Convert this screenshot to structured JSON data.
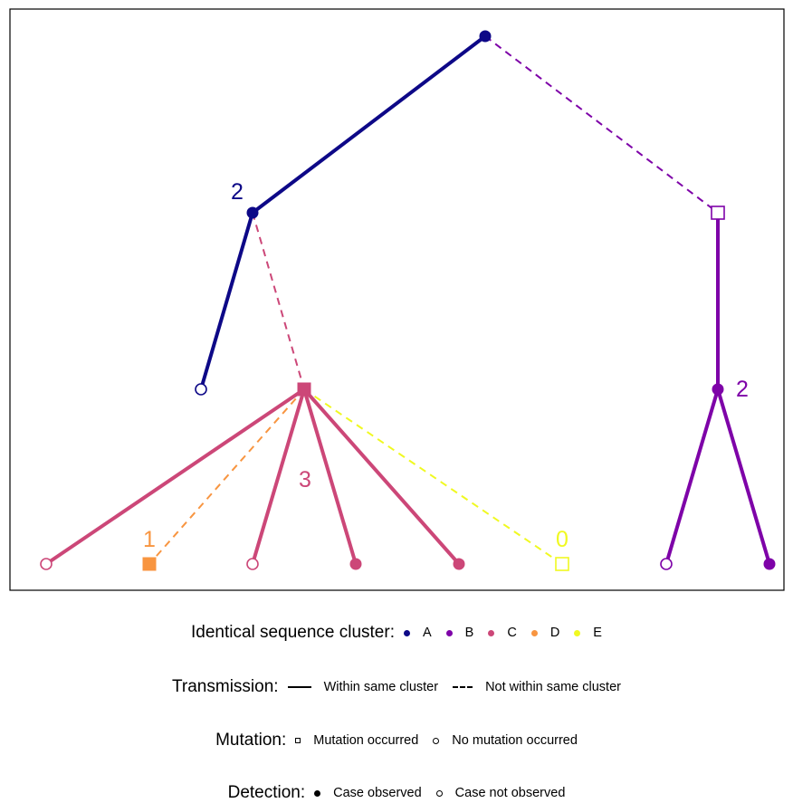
{
  "colors": {
    "A": "#0d0887",
    "B": "#7e03a8",
    "C": "#cc4778",
    "D": "#f89540",
    "E": "#f0f921"
  },
  "tree": {
    "nodes": [
      {
        "id": "root",
        "cluster": "A",
        "shape": "circle",
        "observed": true,
        "label": ""
      },
      {
        "id": "n2",
        "cluster": "A",
        "shape": "circle",
        "observed": true,
        "label": "2"
      },
      {
        "id": "nB",
        "cluster": "B",
        "shape": "square",
        "observed": false,
        "label": ""
      },
      {
        "id": "n4",
        "cluster": "A",
        "shape": "circle",
        "observed": false,
        "label": ""
      },
      {
        "id": "nC",
        "cluster": "C",
        "shape": "square",
        "observed": true,
        "label": "3"
      },
      {
        "id": "n6",
        "cluster": "B",
        "shape": "circle",
        "observed": true,
        "label": "2"
      },
      {
        "id": "c1",
        "cluster": "C",
        "shape": "circle",
        "observed": false,
        "label": ""
      },
      {
        "id": "c2",
        "cluster": "D",
        "shape": "square",
        "observed": true,
        "label": "1"
      },
      {
        "id": "c3",
        "cluster": "C",
        "shape": "circle",
        "observed": false,
        "label": ""
      },
      {
        "id": "c4",
        "cluster": "C",
        "shape": "circle",
        "observed": true,
        "label": ""
      },
      {
        "id": "c5",
        "cluster": "C",
        "shape": "circle",
        "observed": true,
        "label": ""
      },
      {
        "id": "c6",
        "cluster": "E",
        "shape": "square",
        "observed": false,
        "label": "0"
      },
      {
        "id": "c7",
        "cluster": "B",
        "shape": "circle",
        "observed": false,
        "label": ""
      },
      {
        "id": "c8",
        "cluster": "B",
        "shape": "circle",
        "observed": true,
        "label": ""
      }
    ],
    "edges": [
      {
        "from": "root",
        "to": "n2",
        "same_cluster": true
      },
      {
        "from": "root",
        "to": "nB",
        "same_cluster": false
      },
      {
        "from": "n2",
        "to": "n4",
        "same_cluster": true
      },
      {
        "from": "n2",
        "to": "nC",
        "same_cluster": false
      },
      {
        "from": "nB",
        "to": "n6",
        "same_cluster": true
      },
      {
        "from": "nC",
        "to": "c1",
        "same_cluster": true
      },
      {
        "from": "nC",
        "to": "c2",
        "same_cluster": false
      },
      {
        "from": "nC",
        "to": "c3",
        "same_cluster": true
      },
      {
        "from": "nC",
        "to": "c4",
        "same_cluster": true
      },
      {
        "from": "nC",
        "to": "c5",
        "same_cluster": true
      },
      {
        "from": "nC",
        "to": "c6",
        "same_cluster": false
      },
      {
        "from": "n6",
        "to": "c7",
        "same_cluster": true
      },
      {
        "from": "n6",
        "to": "c8",
        "same_cluster": true
      }
    ]
  },
  "legend": {
    "cluster": {
      "title": "Identical sequence cluster:",
      "items": [
        {
          "label": "A",
          "color": "#0d0887"
        },
        {
          "label": "B",
          "color": "#7e03a8"
        },
        {
          "label": "C",
          "color": "#cc4778"
        },
        {
          "label": "D",
          "color": "#f89540"
        },
        {
          "label": "E",
          "color": "#f0f921"
        }
      ]
    },
    "transmission": {
      "title": "Transmission:",
      "solid": "Within same cluster",
      "dashed": "Not within same cluster"
    },
    "mutation": {
      "title": "Mutation:",
      "occurred": "Mutation occurred",
      "not_occurred": "No mutation occurred"
    },
    "detection": {
      "title": "Detection:",
      "observed": "Case observed",
      "not_observed": "Case not observed"
    }
  }
}
